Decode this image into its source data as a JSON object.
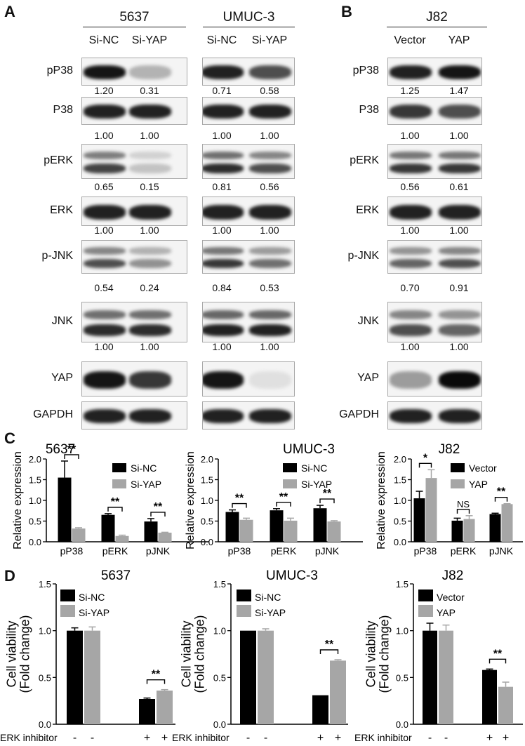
{
  "panels": {
    "A": "A",
    "B": "B",
    "C": "C",
    "D": "D"
  },
  "blots": [
    {
      "cell_line": "5637",
      "lanes": [
        "Si-NC",
        "Si-YAP"
      ],
      "rows": [
        {
          "label": "pP38",
          "quant": [
            "1.20",
            "0.31"
          ]
        },
        {
          "label": "P38",
          "quant": [
            "1.00",
            "1.00"
          ]
        },
        {
          "label": "pERK",
          "quant": [
            "0.65",
            "0.15"
          ]
        },
        {
          "label": "ERK",
          "quant": [
            "1.00",
            "1.00"
          ]
        },
        {
          "label": "p-JNK",
          "quant": [
            "0.54",
            "0.24"
          ]
        },
        {
          "label": "JNK",
          "quant": [
            "1.00",
            "1.00"
          ]
        },
        {
          "label": "YAP",
          "quant": []
        },
        {
          "label": "GAPDH",
          "quant": []
        }
      ]
    },
    {
      "cell_line": "UMUC-3",
      "lanes": [
        "Si-NC",
        "Si-YAP"
      ],
      "rows": [
        {
          "label": "",
          "quant": [
            "0.71",
            "0.58"
          ]
        },
        {
          "label": "",
          "quant": [
            "1.00",
            "1.00"
          ]
        },
        {
          "label": "",
          "quant": [
            "0.81",
            "0.56"
          ]
        },
        {
          "label": "",
          "quant": [
            "1.00",
            "1.00"
          ]
        },
        {
          "label": "",
          "quant": [
            "0.84",
            "0.53"
          ]
        },
        {
          "label": "",
          "quant": [
            "1.00",
            "1.00"
          ]
        },
        {
          "label": "",
          "quant": []
        },
        {
          "label": "",
          "quant": []
        }
      ]
    },
    {
      "cell_line": "J82",
      "lanes": [
        "Vector",
        "YAP"
      ],
      "rows": [
        {
          "label": "pP38",
          "quant": [
            "1.25",
            "1.47"
          ]
        },
        {
          "label": "P38",
          "quant": [
            "1.00",
            "1.00"
          ]
        },
        {
          "label": "pERK",
          "quant": [
            "0.56",
            "0.61"
          ]
        },
        {
          "label": "ERK",
          "quant": [
            "1.00",
            "1.00"
          ]
        },
        {
          "label": "p-JNK",
          "quant": [
            "0.70",
            "0.91"
          ]
        },
        {
          "label": "JNK",
          "quant": [
            "1.00",
            "1.00"
          ]
        },
        {
          "label": "YAP",
          "quant": []
        },
        {
          "label": "GAPDH",
          "quant": []
        }
      ]
    }
  ],
  "colors": {
    "series1": "#000000",
    "series2": "#a6a6a6"
  },
  "chart_data": [
    {
      "type": "bar",
      "title": "5637",
      "ylabel": "Relative expression",
      "xlabel": "",
      "categories": [
        "pP38",
        "pERK",
        "pJNK"
      ],
      "ylim": [
        0,
        2.0
      ],
      "yticks": [
        "0.0",
        "0.5",
        "1.0",
        "1.5",
        "2.0"
      ],
      "series": [
        {
          "name": "Si-NC",
          "values": [
            1.55,
            0.65,
            0.49
          ],
          "errors": [
            0.4,
            0.03,
            0.07
          ]
        },
        {
          "name": "Si-YAP",
          "values": [
            0.32,
            0.14,
            0.22
          ],
          "errors": [
            0.02,
            0.02,
            0.01
          ]
        }
      ],
      "significance": [
        "**",
        "**",
        "**"
      ],
      "legend": "top-right"
    },
    {
      "type": "bar",
      "title": "UMUC-3",
      "ylabel": "Relative expression",
      "xlabel": "",
      "categories": [
        "pP38",
        "pERK",
        "pJNK"
      ],
      "ylim": [
        0,
        2.0
      ],
      "yticks": [
        "0.0",
        "0.5",
        "1.0",
        "1.5",
        "2.0"
      ],
      "series": [
        {
          "name": "Si-NC",
          "values": [
            0.72,
            0.76,
            0.81
          ],
          "errors": [
            0.05,
            0.04,
            0.07
          ]
        },
        {
          "name": "Si-YAP",
          "values": [
            0.53,
            0.51,
            0.49
          ],
          "errors": [
            0.04,
            0.06,
            0.02
          ]
        }
      ],
      "significance": [
        "**",
        "**",
        "**"
      ],
      "legend": "top-right"
    },
    {
      "type": "bar",
      "title": "J82",
      "ylabel": "Relative expression",
      "xlabel": "",
      "categories": [
        "pP38",
        "pERK",
        "pJNK"
      ],
      "ylim": [
        0,
        2.0
      ],
      "yticks": [
        "0.0",
        "0.5",
        "1.0",
        "1.5",
        "2.0"
      ],
      "series": [
        {
          "name": "Vector",
          "values": [
            1.05,
            0.51,
            0.67
          ],
          "errors": [
            0.17,
            0.06,
            0.02
          ]
        },
        {
          "name": "YAP",
          "values": [
            1.54,
            0.55,
            0.91
          ],
          "errors": [
            0.2,
            0.08,
            0.01
          ]
        }
      ],
      "significance": [
        "*",
        "NS",
        "**"
      ],
      "legend": "top-right"
    },
    {
      "type": "bar",
      "title": "5637",
      "ylabel": "Cell viability\n(Fold change)",
      "xlabel": "ERK inhibitor",
      "groups": [
        {
          "treatment": [
            "-",
            "-"
          ]
        },
        {
          "treatment": [
            "+",
            "+"
          ]
        }
      ],
      "ylim": [
        0,
        1.5
      ],
      "yticks": [
        "0.0",
        "0.5",
        "1.0",
        "1.5"
      ],
      "series": [
        {
          "name": "Si-NC",
          "values": [
            1.0,
            0.27
          ],
          "errors": [
            0.03,
            0.01
          ]
        },
        {
          "name": "Si-YAP",
          "values": [
            1.0,
            0.36
          ],
          "errors": [
            0.04,
            0.01
          ]
        }
      ],
      "significance": [
        "",
        "**"
      ],
      "legend": "top-left"
    },
    {
      "type": "bar",
      "title": "UMUC-3",
      "ylabel": "Cell viability\n(Fold change)",
      "xlabel": "ERK inhibitor",
      "groups": [
        {
          "treatment": [
            "-",
            "-"
          ]
        },
        {
          "treatment": [
            "+",
            "+"
          ]
        }
      ],
      "ylim": [
        0,
        1.5
      ],
      "yticks": [
        "0.0",
        "0.5",
        "1.0",
        "1.5"
      ],
      "series": [
        {
          "name": "Si-NC",
          "values": [
            1.0,
            0.31
          ],
          "errors": [
            0.0,
            0.0
          ]
        },
        {
          "name": "Si-YAP",
          "values": [
            1.0,
            0.68
          ],
          "errors": [
            0.02,
            0.01
          ]
        }
      ],
      "significance": [
        "",
        "**"
      ],
      "legend": "top-left"
    },
    {
      "type": "bar",
      "title": "J82",
      "ylabel": "Cell viability\n(Fold change)",
      "xlabel": "ERK inhibitor",
      "groups": [
        {
          "treatment": [
            "-",
            "-"
          ]
        },
        {
          "treatment": [
            "+",
            "+"
          ]
        }
      ],
      "ylim": [
        0,
        1.5
      ],
      "yticks": [
        "0.0",
        "0.5",
        "1.0",
        "1.5"
      ],
      "series": [
        {
          "name": "Vector",
          "values": [
            1.0,
            0.58
          ],
          "errors": [
            0.08,
            0.01
          ]
        },
        {
          "name": "YAP",
          "values": [
            1.0,
            0.4
          ],
          "errors": [
            0.06,
            0.05
          ]
        }
      ],
      "significance": [
        "",
        "**"
      ],
      "legend": "top-left"
    }
  ]
}
